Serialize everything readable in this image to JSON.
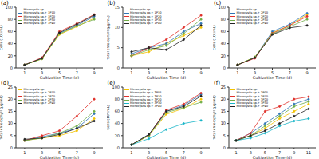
{
  "chart_data": [
    {
      "type": "line",
      "title": "(a)",
      "x_label": "Cultivation Time (d)",
      "y_label": "Cells (10⁵/mL)",
      "x": [
        1,
        3,
        5,
        7,
        9
      ],
      "xlim": [
        0,
        10
      ],
      "xticks": [
        1,
        3,
        5,
        7,
        9
      ],
      "ylim": [
        0,
        100
      ],
      "yticks": [
        0,
        20,
        40,
        60,
        80,
        100
      ],
      "legend": "upper left",
      "marker": "circle",
      "series": [
        {
          "name": "Microcystis sp.",
          "color": "#f2c200",
          "values": [
            5,
            15,
            55,
            68,
            82
          ]
        },
        {
          "name": "Microcystis sp.+ 1P10",
          "color": "#2e75b6",
          "values": [
            5,
            16,
            57,
            70,
            85
          ]
        },
        {
          "name": "Microcystis sp.+ 1P20",
          "color": "#e0302a",
          "values": [
            5,
            17,
            60,
            73,
            88
          ]
        },
        {
          "name": "Microcystis sp.+ 1P30",
          "color": "#70ad47",
          "values": [
            5,
            15,
            56,
            69,
            80
          ]
        },
        {
          "name": "Microcystis sp.+ 1P40",
          "color": "#222222",
          "values": [
            5,
            16,
            58,
            72,
            87
          ]
        }
      ]
    },
    {
      "type": "line",
      "title": "(b)",
      "x_label": "Cultivation Time (d)",
      "y_label": "Total chlorophyll (μg/mL)",
      "x": [
        1,
        3,
        5,
        7,
        9
      ],
      "xlim": [
        0,
        10
      ],
      "xticks": [
        1,
        3,
        5,
        7,
        9
      ],
      "ylim": [
        0,
        15
      ],
      "yticks": [
        0,
        5,
        10,
        15
      ],
      "legend": "upper left",
      "marker": "circle",
      "series": [
        {
          "name": "Microcystis sp.",
          "color": "#f2c200",
          "values": [
            3,
            4,
            6,
            8,
            10
          ]
        },
        {
          "name": "Microcystis sp.+ 1P10",
          "color": "#2e75b6",
          "values": [
            3.5,
            5,
            6,
            9,
            11
          ]
        },
        {
          "name": "Microcystis sp.+ 1P20",
          "color": "#e0302a",
          "values": [
            3,
            5,
            7,
            10,
            13
          ]
        },
        {
          "name": "Microcystis sp.+ 1P30",
          "color": "#70ad47",
          "values": [
            3,
            4.5,
            5.5,
            8.5,
            12
          ]
        },
        {
          "name": "Microcystis sp.+ 1P40",
          "color": "#222222",
          "values": [
            4,
            5,
            4.5,
            7,
            10.5
          ]
        }
      ]
    },
    {
      "type": "line",
      "title": "(c)",
      "x_label": "Cultivation Time (d)",
      "y_label": "Cells (10⁵/mL)",
      "x": [
        1,
        3,
        5,
        7,
        9
      ],
      "xlim": [
        0,
        10
      ],
      "xticks": [
        1,
        3,
        5,
        7,
        9
      ],
      "ylim": [
        0,
        100
      ],
      "yticks": [
        0,
        20,
        40,
        60,
        80,
        100
      ],
      "legend": "upper left",
      "marker": "circle",
      "series": [
        {
          "name": "Microcystis sp.",
          "color": "#f2c200",
          "values": [
            5,
            18,
            58,
            70,
            88
          ]
        },
        {
          "name": "Microcystis sp.+ 2P10",
          "color": "#2e75b6",
          "values": [
            5,
            17,
            60,
            72,
            90
          ]
        },
        {
          "name": "Microcystis sp.+ 2P20",
          "color": "#e0302a",
          "values": [
            5,
            16,
            57,
            70,
            85
          ]
        },
        {
          "name": "Microcystis sp.+ 2P30",
          "color": "#70ad47",
          "values": [
            5,
            18,
            56,
            68,
            80
          ]
        },
        {
          "name": "Microcystis sp.+ 2P40",
          "color": "#222222",
          "values": [
            5,
            17,
            55,
            66,
            70
          ]
        }
      ]
    },
    {
      "type": "line",
      "title": "(d)",
      "x_label": "Cultivation Time (d)",
      "y_label": "Total chlorophyll (μg/mL)",
      "x": [
        1,
        3,
        5,
        7,
        9
      ],
      "xlim": [
        0,
        10
      ],
      "xticks": [
        1,
        3,
        5,
        7,
        9
      ],
      "ylim": [
        0,
        25
      ],
      "yticks": [
        0,
        5,
        10,
        15,
        20,
        25
      ],
      "legend": "upper left",
      "marker": "circle",
      "series": [
        {
          "name": "Microcystis sp.",
          "color": "#f2c200",
          "values": [
            3,
            4,
            5,
            7,
            12
          ]
        },
        {
          "name": "Microcystis sp.+ 2P10",
          "color": "#2e75b6",
          "values": [
            3,
            4.5,
            6,
            8,
            14
          ]
        },
        {
          "name": "Microcystis sp.+ 2P20",
          "color": "#e0302a",
          "values": [
            3,
            5,
            7,
            13,
            20
          ]
        },
        {
          "name": "Microcystis sp.+ 2P30",
          "color": "#70ad47",
          "values": [
            3,
            4,
            6,
            9,
            15
          ]
        },
        {
          "name": "Microcystis sp.+ 2P40",
          "color": "#222222",
          "values": [
            3.5,
            4,
            5.5,
            8,
            11
          ]
        }
      ]
    },
    {
      "type": "line",
      "title": "(e)",
      "x_label": "Cultivation Time (d)",
      "y_label": "Cells (10⁵/mL)",
      "x": [
        1,
        3,
        5,
        7,
        9
      ],
      "xlim": [
        0,
        10
      ],
      "xticks": [
        1,
        3,
        5,
        7,
        9
      ],
      "ylim": [
        0,
        100
      ],
      "yticks": [
        0,
        20,
        40,
        60,
        80,
        100
      ],
      "legend": "upper left",
      "marker": "circle",
      "series": [
        {
          "name": "Microcystis sp.",
          "color": "#f2c200",
          "values": [
            5,
            20,
            55,
            65,
            80
          ]
        },
        {
          "name": "Microcystis sp.+ 3P05",
          "color": "#2e75b6",
          "values": [
            5,
            22,
            60,
            70,
            88
          ]
        },
        {
          "name": "Microcystis sp.+ 3P10",
          "color": "#e0302a",
          "values": [
            5,
            21,
            62,
            72,
            90
          ]
        },
        {
          "name": "Microcystis sp.+ 3P20",
          "color": "#70ad47",
          "values": [
            5,
            20,
            58,
            66,
            75
          ]
        },
        {
          "name": "Microcystis sp.+ 3P30",
          "color": "#17b5c8",
          "values": [
            5,
            15,
            30,
            40,
            45
          ]
        },
        {
          "name": "Microcystis sp.+ 3P40",
          "color": "#222222",
          "values": [
            5,
            22,
            60,
            68,
            85
          ]
        }
      ]
    },
    {
      "type": "line",
      "title": "(f)",
      "x_label": "Cultivation Time (d)",
      "y_label": "Total chlorophyll (μg/mL)",
      "x": [
        1,
        3,
        5,
        7,
        9,
        11
      ],
      "xlim": [
        0,
        12
      ],
      "xticks": [
        1,
        3,
        5,
        7,
        9,
        11
      ],
      "ylim": [
        0,
        25
      ],
      "yticks": [
        0,
        5,
        10,
        15,
        20,
        25
      ],
      "legend": "upper left",
      "marker": "circle",
      "series": [
        {
          "name": "Microcystis sp.",
          "color": "#f2c200",
          "values": [
            3,
            5,
            8,
            12,
            15,
            18
          ]
        },
        {
          "name": "Microcystis sp.+ 3P05",
          "color": "#2e75b6",
          "values": [
            3,
            6,
            10,
            14,
            18,
            20
          ]
        },
        {
          "name": "Microcystis sp.+ 3P10",
          "color": "#e0302a",
          "values": [
            3,
            6,
            15,
            17,
            20,
            21
          ]
        },
        {
          "name": "Microcystis sp.+ 3P20",
          "color": "#70ad47",
          "values": [
            3,
            5,
            9,
            13,
            17,
            19
          ]
        },
        {
          "name": "Microcystis sp.+ 3P30",
          "color": "#17b5c8",
          "values": [
            3,
            4,
            6,
            9,
            11,
            12
          ]
        },
        {
          "name": "Microcystis sp.+ 3P40",
          "color": "#222222",
          "values": [
            3,
            5,
            7,
            10,
            13,
            16
          ]
        }
      ]
    }
  ]
}
